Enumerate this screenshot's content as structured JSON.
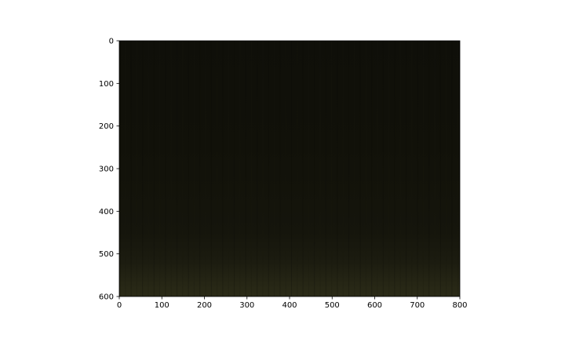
{
  "chart_data": {
    "type": "heatmap",
    "title": "",
    "xlabel": "",
    "ylabel": "",
    "xlim": [
      0,
      800
    ],
    "ylim": [
      600,
      0
    ],
    "y_inverted": true,
    "grid": false,
    "legend": "none",
    "x_ticks": [
      0,
      100,
      200,
      300,
      400,
      500,
      600,
      700,
      800
    ],
    "y_ticks": [
      0,
      100,
      200,
      300,
      400,
      500,
      600
    ],
    "x_tick_labels": [
      "0",
      "100",
      "200",
      "300",
      "400",
      "500",
      "600",
      "700",
      "800"
    ],
    "y_tick_labels": [
      "0",
      "100",
      "200",
      "300",
      "400",
      "500",
      "600"
    ],
    "image": {
      "description_colors": [
        "#0e0e08",
        "#111108",
        "#15150b",
        "#1f1f10",
        "#2a2a16"
      ],
      "brightness_by_row": [
        {
          "y": 0,
          "color": "#0f0f09"
        },
        {
          "y": 250,
          "color": "#111109"
        },
        {
          "y": 450,
          "color": "#15150c"
        },
        {
          "y": 520,
          "color": "#1c1c10"
        },
        {
          "y": 570,
          "color": "#262615"
        },
        {
          "y": 600,
          "color": "#2b2b17"
        }
      ]
    }
  }
}
